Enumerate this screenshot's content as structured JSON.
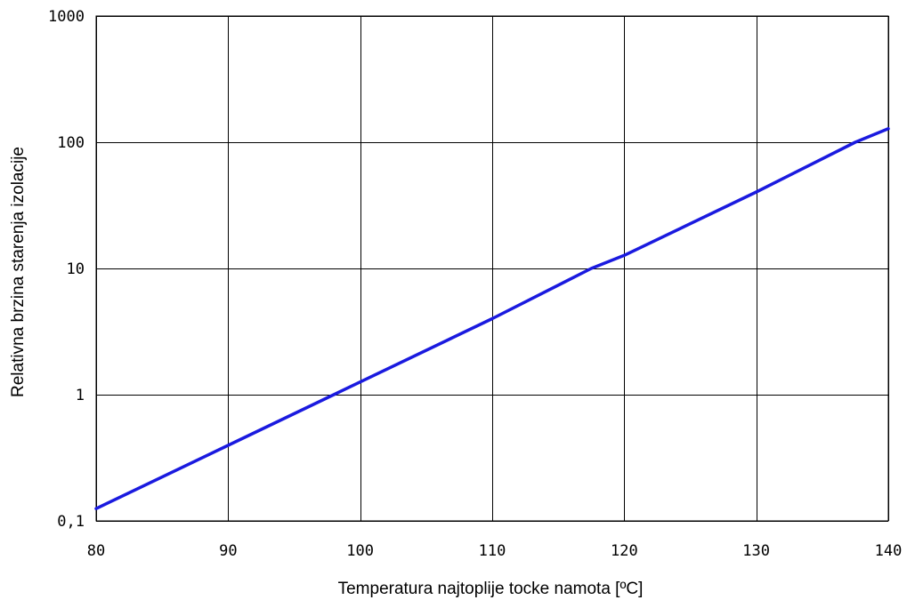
{
  "chart_data": {
    "type": "line",
    "title": "",
    "xlabel": "Temperatura najtoplije tocke namota [ºC]",
    "ylabel": "Relativna brzina starenja izolacije",
    "xlim": [
      80,
      140
    ],
    "ylim": [
      0.1,
      1000
    ],
    "yscale": "log",
    "grid": true,
    "x_ticks": [
      80,
      90,
      100,
      110,
      120,
      130,
      140
    ],
    "x_tick_labels": [
      "80",
      "90",
      "100",
      "110",
      "120",
      "130",
      "140"
    ],
    "y_ticks": [
      0.1,
      1,
      10,
      100,
      1000
    ],
    "y_tick_labels": [
      "0,1",
      "1",
      "10",
      "100",
      "1000"
    ],
    "series": [
      {
        "color": "#1a1adf",
        "x": [
          80,
          90,
          98,
          100,
          110,
          117.5,
          120,
          130,
          137.5,
          140
        ],
        "y": [
          0.125,
          0.397,
          1,
          1.26,
          4,
          10,
          12.7,
          40.3,
          100,
          128
        ]
      }
    ]
  }
}
